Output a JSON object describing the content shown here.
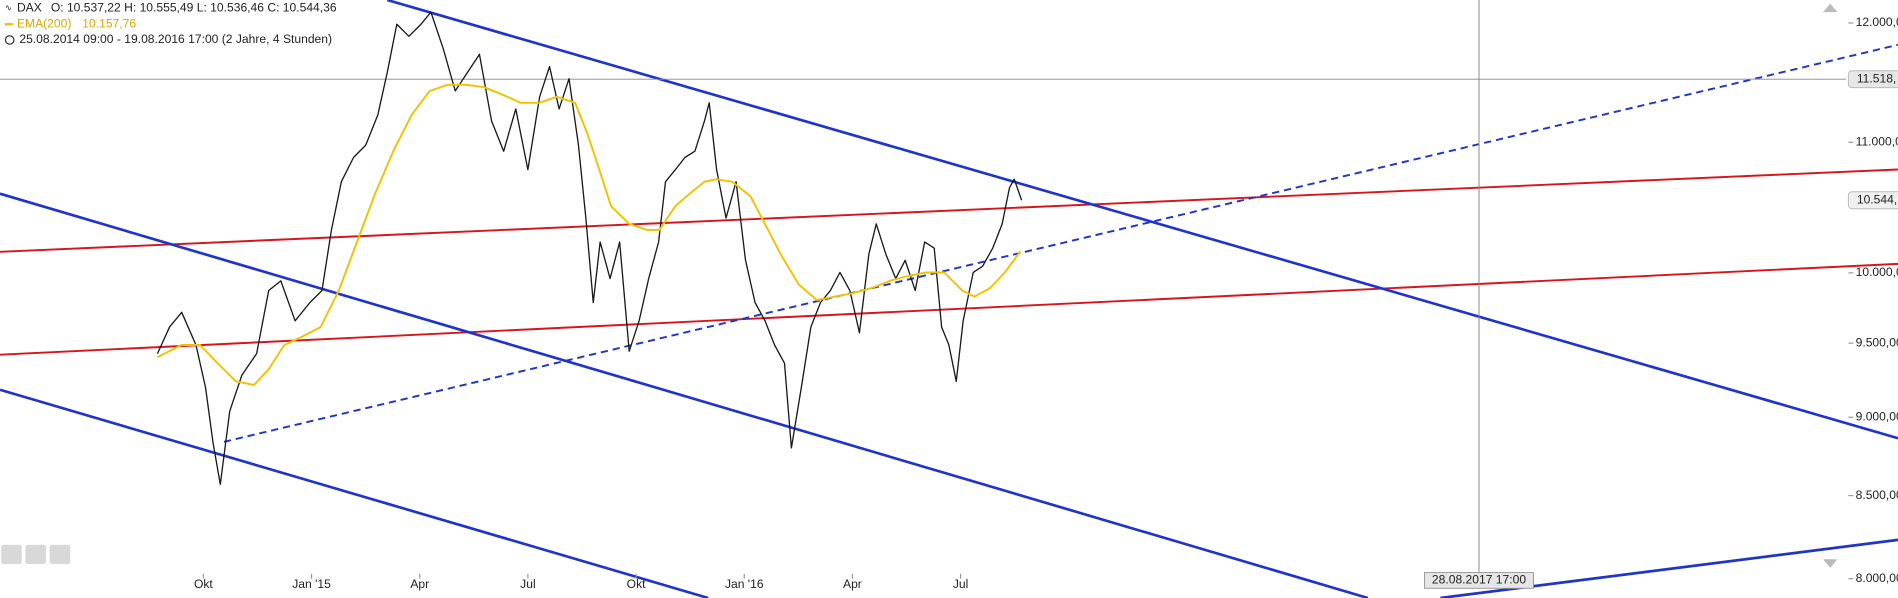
{
  "chart_data": {
    "type": "line",
    "ohlc": "O: 10.537,22  H: 10.555,49  L: 10.536,46  C: 10.544,36",
    "period": "25.08.2014 09:00 - 19.08.2016 17:00 (2 Jahre, 4 Stunden)",
    "log_scale": true,
    "xlim": [
      2014.28,
      2018.546
    ],
    "ylim": [
      7888,
      12203
    ],
    "xticks": [
      {
        "value": 2014.75,
        "label": "Okt"
      },
      {
        "value": 2015.0,
        "label": "Jan '15"
      },
      {
        "value": 2015.25,
        "label": "Apr"
      },
      {
        "value": 2015.5,
        "label": "Jul"
      },
      {
        "value": 2015.75,
        "label": "Okt"
      },
      {
        "value": 2016.0,
        "label": "Jan '16"
      },
      {
        "value": 2016.25,
        "label": "Apr"
      },
      {
        "value": 2016.5,
        "label": "Jul"
      }
    ],
    "yticks": [
      {
        "value": 8000,
        "label": "8.000,00"
      },
      {
        "value": 8500,
        "label": "8.500,00"
      },
      {
        "value": 9000,
        "label": "9.000,00"
      },
      {
        "value": 9500,
        "label": "9.500,00"
      },
      {
        "value": 10000,
        "label": "10.000,00"
      },
      {
        "value": 11000,
        "label": "11.000,00"
      },
      {
        "value": 12000,
        "label": "12.000,00"
      }
    ],
    "price_markers": [
      {
        "value": 11518,
        "label": "11.518,"
      },
      {
        "value": 10544,
        "label": "10.544,"
      }
    ],
    "crosshair_x": {
      "value": 2017.698,
      "label": "28.08.2017 17:00"
    },
    "series": [
      {
        "name": "DAX",
        "color": "#1a1a1a",
        "x": [
          2014.644,
          2014.672,
          2014.7,
          2014.733,
          2014.755,
          2014.772,
          2014.789,
          2014.811,
          2014.839,
          2014.873,
          2014.901,
          2014.929,
          2014.962,
          2014.996,
          2015.024,
          2015.046,
          2015.069,
          2015.097,
          2015.125,
          2015.153,
          2015.175,
          2015.197,
          2015.225,
          2015.253,
          2015.276,
          2015.304,
          2015.332,
          2015.36,
          2015.388,
          2015.416,
          2015.444,
          2015.472,
          2015.5,
          2015.527,
          2015.55,
          2015.572,
          2015.595,
          2015.617,
          2015.634,
          2015.651,
          2015.667,
          2015.69,
          2015.712,
          2015.734,
          2015.757,
          2015.779,
          2015.802,
          2015.818,
          2015.841,
          2015.863,
          2015.886,
          2015.908,
          2015.919,
          2015.936,
          2015.958,
          2015.981,
          2016.003,
          2016.025,
          2016.048,
          2016.07,
          2016.093,
          2016.109,
          2016.132,
          2016.154,
          2016.176,
          2016.199,
          2016.221,
          2016.244,
          2016.266,
          2016.288,
          2016.305,
          2016.327,
          2016.35,
          2016.372,
          2016.395,
          2016.417,
          2016.439,
          2016.456,
          2016.473,
          2016.49,
          2016.506,
          2016.529,
          2016.551,
          2016.574,
          2016.596,
          2016.613,
          2016.624,
          2016.641
        ],
        "values": [
          9428,
          9613,
          9716,
          9487,
          9198,
          8839,
          8570,
          9040,
          9280,
          9428,
          9872,
          9942,
          9656,
          9785,
          9872,
          10318,
          10688,
          10879,
          10976,
          11221,
          11573,
          11989,
          11884,
          11989,
          12096,
          11779,
          11420,
          11573,
          11728,
          11172,
          10928,
          11270,
          10783,
          11370,
          11624,
          11270,
          11522,
          10976,
          10408,
          9785,
          10228,
          9959,
          10228,
          9445,
          9656,
          9959,
          10228,
          10688,
          10783,
          10879,
          10928,
          11172,
          11321,
          10783,
          10408,
          10688,
          10092,
          9785,
          9656,
          9487,
          9362,
          8801,
          9198,
          9613,
          9785,
          9872,
          10003,
          9872,
          9572,
          10138,
          10363,
          10138,
          9959,
          10092,
          9872,
          10228,
          10182,
          9613,
          9487,
          9239,
          9656,
          10003,
          10049,
          10182,
          10363,
          10642,
          10708,
          10544
        ]
      },
      {
        "name": "EMA(200)",
        "color": "#f2c200",
        "value_label": "10.157,76",
        "x": [
          2014.644,
          2014.7,
          2014.742,
          2014.783,
          2014.825,
          2014.867,
          2014.901,
          2014.937,
          2014.979,
          2015.021,
          2015.063,
          2015.105,
          2015.147,
          2015.189,
          2015.231,
          2015.273,
          2015.315,
          2015.357,
          2015.399,
          2015.441,
          2015.483,
          2015.525,
          2015.567,
          2015.609,
          2015.637,
          2015.665,
          2015.692,
          2015.734,
          2015.776,
          2015.804,
          2015.841,
          2015.874,
          2015.908,
          2015.936,
          2015.972,
          2016.014,
          2016.048,
          2016.084,
          2016.126,
          2016.168,
          2016.21,
          2016.252,
          2016.294,
          2016.336,
          2016.378,
          2016.42,
          2016.462,
          2016.504,
          2016.532,
          2016.568,
          2016.602,
          2016.638
        ],
        "values": [
          9404,
          9487,
          9487,
          9362,
          9239,
          9215,
          9321,
          9487,
          9546,
          9613,
          9872,
          10228,
          10595,
          10928,
          11221,
          11420,
          11471,
          11471,
          11451,
          11390,
          11321,
          11321,
          11370,
          11321,
          11074,
          10783,
          10500,
          10363,
          10318,
          10318,
          10500,
          10595,
          10688,
          10708,
          10688,
          10576,
          10363,
          10138,
          9916,
          9803,
          9828,
          9854,
          9889,
          9942,
          9977,
          10003,
          10003,
          9872,
          9828,
          9889,
          10003,
          10158
        ]
      }
    ]
  }
}
